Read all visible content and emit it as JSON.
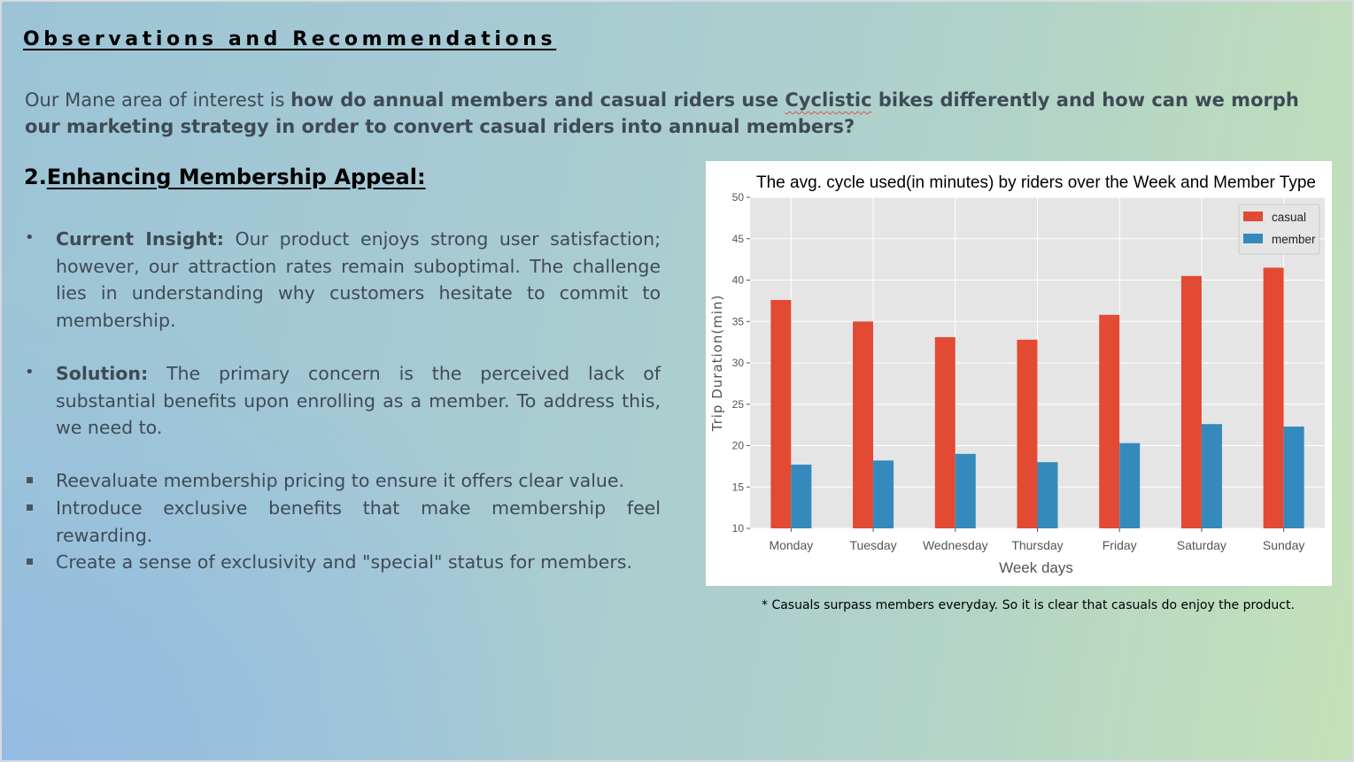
{
  "slide": {
    "title": "Observations and Recommendations",
    "intro": {
      "lead": " Our Mane area of interest is ",
      "bold_before": "how do annual members and casual riders use ",
      "bold_flagged_word": "Cyclistic",
      "bold_after": " bikes differently and how can we morph our marketing strategy in order to convert casual riders into annual members?"
    },
    "section": {
      "number": "2.",
      "title": "Enhancing Membership Appeal:"
    },
    "bullets": [
      {
        "label": "Current Insight:",
        "text": " Our product enjoys strong user satisfaction; however, our attraction rates remain suboptimal. The challenge lies in understanding why customers hesitate to commit to membership."
      },
      {
        "label": "Solution:",
        "text": " The primary concern is the perceived lack of substantial benefits upon enrolling as a member. To address this, we need to."
      }
    ],
    "sub_bullets": [
      "Reevaluate membership pricing to ensure it offers clear value.",
      "Introduce exclusive benefits that make membership feel rewarding.",
      "Create a sense of exclusivity and \"special\" status for members."
    ],
    "chart_note": "* Casuals surpass members everyday. So it is clear that casuals do enjoy the product."
  },
  "chart_data": {
    "type": "bar",
    "title": "The avg. cycle used(in minutes) by riders over the Week and Member Type",
    "xlabel": "Week days",
    "ylabel": "Trip Duration(min)",
    "categories": [
      "Monday",
      "Tuesday",
      "Wednesday",
      "Thursday",
      "Friday",
      "Saturday",
      "Sunday"
    ],
    "series": [
      {
        "name": "casual",
        "color": "#e24a33",
        "values": [
          37.6,
          35.0,
          33.1,
          32.8,
          35.8,
          40.5,
          41.5
        ]
      },
      {
        "name": "member",
        "color": "#348abd",
        "values": [
          17.7,
          18.2,
          19.0,
          18.0,
          20.3,
          22.6,
          22.3
        ]
      }
    ],
    "ylim": [
      10,
      50
    ],
    "yticks": [
      10,
      15,
      20,
      25,
      30,
      35,
      40,
      45,
      50
    ],
    "grid": true,
    "legend_position": "top-right",
    "plot_background": "#e5e5e5"
  }
}
